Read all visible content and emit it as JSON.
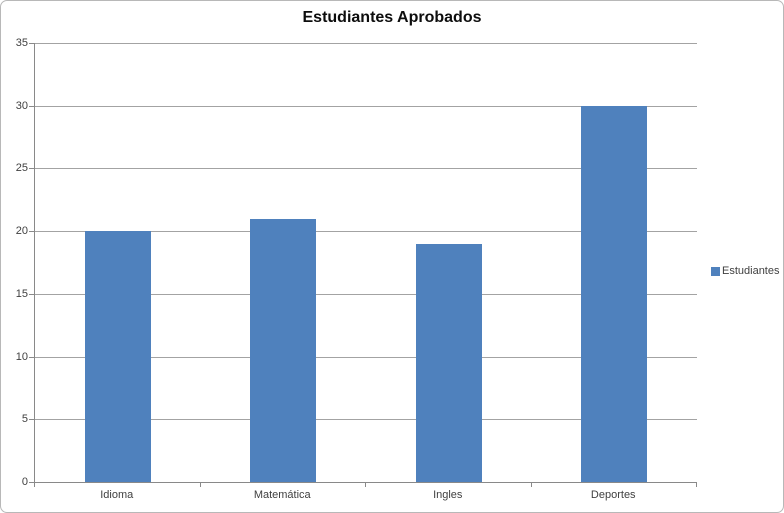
{
  "chart": {
    "title": "Estudiantes Aprobados",
    "legend": {
      "label": "Estudiantes",
      "swatch_color": "#4F81BD",
      "position": "right"
    }
  },
  "chart_data": {
    "type": "bar",
    "title": "Estudiantes Aprobados",
    "categories": [
      "Idioma",
      "Matemática",
      "Ingles",
      "Deportes"
    ],
    "series": [
      {
        "name": "Estudiantes",
        "values": [
          20,
          21,
          19,
          30
        ]
      }
    ],
    "xlabel": "",
    "ylabel": "",
    "ylim": [
      0,
      35
    ],
    "yticks": [
      0,
      5,
      10,
      15,
      20,
      25,
      30,
      35
    ],
    "grid": true,
    "legend_position": "right",
    "bar_color": "#4F81BD",
    "gridline_color": "#A3A3A3",
    "axis_color": "#898989",
    "label_color": "#3F3F3F",
    "title_color": "#0D0D0D",
    "background_color": "#FFFFFF",
    "frame_border_color": "#B8B8B8"
  }
}
